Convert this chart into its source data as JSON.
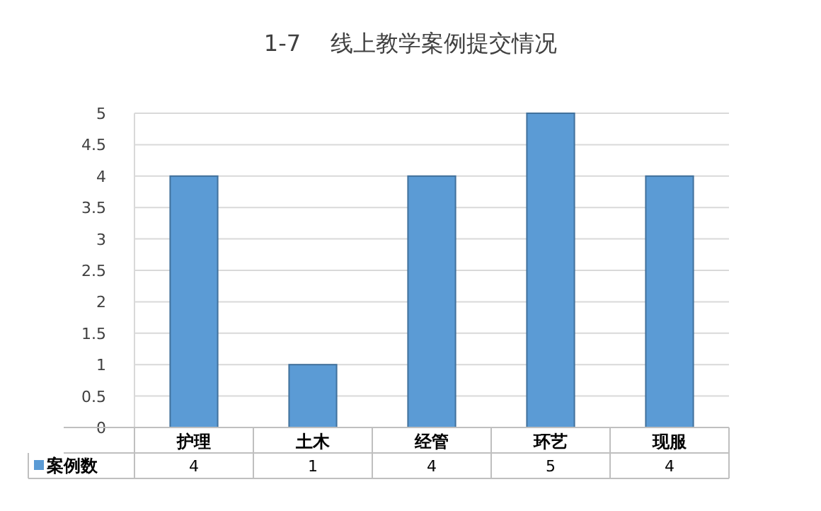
{
  "chart_data": {
    "type": "bar",
    "title": "1-7　 线上教学案例提交情况",
    "categories": [
      "护理",
      "土木",
      "经管",
      "环艺",
      "现服"
    ],
    "series": [
      {
        "name": "案例数",
        "color": "#5b9bd5",
        "values": [
          4,
          1,
          4,
          5,
          4
        ]
      }
    ],
    "ylim": [
      0,
      5
    ],
    "yticks": [
      0,
      0.5,
      1,
      1.5,
      2,
      2.5,
      3,
      3.5,
      4,
      4.5,
      5
    ],
    "grid": "y",
    "data_labels": true,
    "legend": "bottom"
  }
}
